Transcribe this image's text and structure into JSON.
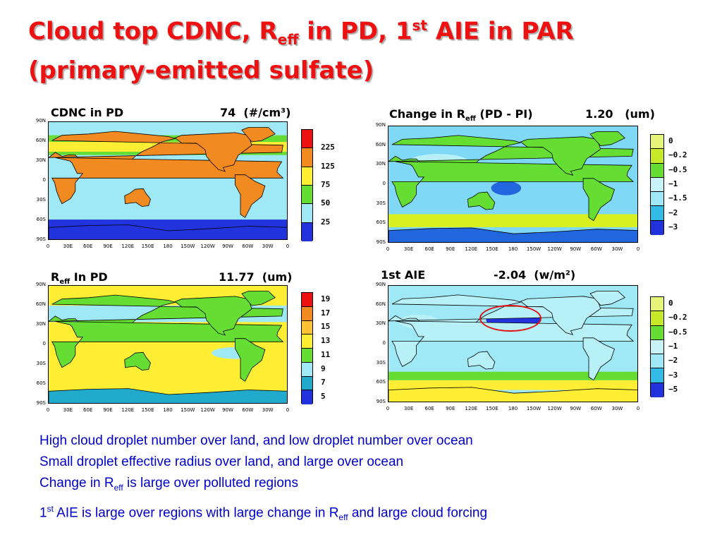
{
  "slide": {
    "title_line1_a": "Cloud top CDNC, R",
    "title_line1_sub": "eff",
    "title_line1_b": " in PD, 1",
    "title_line1_sup": "st",
    "title_line1_c": " AIE in PAR",
    "title_line2": "(primary-emitted sulfate)"
  },
  "axes": {
    "lat_ticks": [
      "90N",
      "60N",
      "30N",
      "0",
      "30S",
      "60S",
      "90S"
    ],
    "lon_ticks": [
      "0",
      "30E",
      "60E",
      "90E",
      "120E",
      "150E",
      "180",
      "150W",
      "120W",
      "90W",
      "60W",
      "30W",
      "0"
    ]
  },
  "panels": [
    {
      "id": "cdnc",
      "title": "CDNC  in PD",
      "title_sub": "",
      "title_rest": "",
      "mean": "74",
      "unit": "(#/cm³)",
      "map_colors": {
        "ocean": "#9fe8f5",
        "land": "#f28a22",
        "high": "#ffee33",
        "mid": "#66dd33",
        "polar": "#2233dd"
      },
      "colorbar": {
        "colors": [
          "#ee1111",
          "#f28a22",
          "#ffee33",
          "#66dd33",
          "#9fe8f5",
          "#2233dd"
        ],
        "labels": [
          "225",
          "125",
          "75",
          "50",
          "25"
        ]
      }
    },
    {
      "id": "dreff",
      "title": "Change in R",
      "title_sub": "eff",
      "title_rest": "  (PD - PI)",
      "mean": "1.20",
      "unit": "(um)",
      "map_colors": {
        "ocean": "#7fd8f5",
        "land": "#66dd33",
        "high": "#d9f020",
        "mid": "#b8f0f8",
        "polar": "#2266dd"
      },
      "colorbar": {
        "colors": [
          "#e6f57a",
          "#c8e82a",
          "#66dd33",
          "#c8f3f8",
          "#9fe8f5",
          "#33bbe8",
          "#2233dd"
        ],
        "labels": [
          "0",
          "−0.2",
          "−0.5",
          "−1",
          "−1.5",
          "−2",
          "−3"
        ]
      }
    },
    {
      "id": "reff",
      "title": "R",
      "title_sub": "eff",
      "title_rest": "   In PD",
      "mean": "11.77",
      "unit": "(um)",
      "map_colors": {
        "ocean": "#ffee33",
        "land": "#66dd33",
        "high": "#f28a22",
        "mid": "#9fe8f5",
        "polar": "#22aacc"
      },
      "colorbar": {
        "colors": [
          "#ee1111",
          "#f28a22",
          "#ffc233",
          "#ffee33",
          "#66dd33",
          "#9fe8f5",
          "#22aacc",
          "#2233dd"
        ],
        "labels": [
          "19",
          "17",
          "15",
          "13",
          "11",
          "9",
          "7",
          "5"
        ]
      }
    },
    {
      "id": "aie",
      "title": "1st AIE",
      "title_sub": "",
      "title_rest": "",
      "mean": "-2.04",
      "unit": "(w/m²)",
      "map_colors": {
        "ocean": "#9fe8f5",
        "land": "#b8f0f8",
        "high": "#2233dd",
        "mid": "#66dd33",
        "polar": "#ffee33"
      },
      "colorbar": {
        "colors": [
          "#e6f57a",
          "#c8e82a",
          "#66dd33",
          "#c8f3f8",
          "#9fe8f5",
          "#33bbe8",
          "#2233dd"
        ],
        "labels": [
          "0",
          "−0.2",
          "−0.5",
          "−1",
          "−2",
          "−3",
          "−5"
        ]
      }
    }
  ],
  "bullets": {
    "line1": "High cloud droplet number over land, and low droplet number over ocean",
    "line2": "Small droplet effective radius over land, and large over ocean",
    "line3_a": "Change in R",
    "line3_sub": "eff",
    "line3_b": " is large over polluted regions",
    "line4_sup_pre": "1",
    "line4_sup": "st",
    "line4_a": " AIE is large over regions with large change in R",
    "line4_sub": "eff",
    "line4_b": " and large cloud forcing"
  }
}
